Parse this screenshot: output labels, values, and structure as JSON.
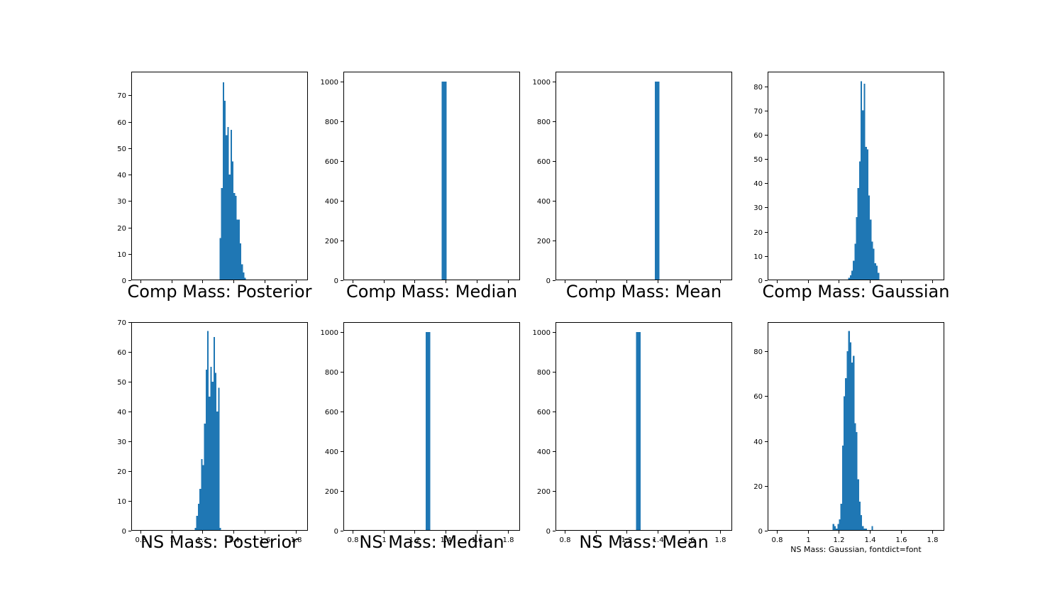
{
  "colors": {
    "bar": "#1f77b4",
    "axis": "#000000",
    "background": "#ffffff"
  },
  "chart_data": [
    {
      "type": "bar",
      "xlabel": "Comp Mass: Posterior",
      "xlim": [
        0.74,
        1.88
      ],
      "ylim": [
        0,
        79
      ],
      "xticks": [
        0.8,
        1.0,
        1.2,
        1.4,
        1.6,
        1.8
      ],
      "xtick_labels_shown": false,
      "yticks": [
        0,
        10,
        20,
        30,
        40,
        50,
        60,
        70
      ],
      "bin_edges": [
        1.31,
        1.32,
        1.33,
        1.34,
        1.35,
        1.36,
        1.37,
        1.38,
        1.39,
        1.4,
        1.41,
        1.42,
        1.43,
        1.44,
        1.45,
        1.46,
        1.47,
        1.48
      ],
      "values": [
        16,
        35,
        75,
        68,
        55,
        58,
        40,
        57,
        45,
        33,
        32,
        23,
        23,
        14,
        6,
        3,
        1
      ]
    },
    {
      "type": "bar",
      "xlabel": "Comp Mass: Median",
      "xlim": [
        0.74,
        1.88
      ],
      "ylim": [
        0,
        1050
      ],
      "xticks": [
        0.8,
        1.0,
        1.2,
        1.4,
        1.6,
        1.8
      ],
      "xtick_labels_shown": false,
      "yticks": [
        0,
        200,
        400,
        600,
        800,
        1000
      ],
      "bin_edges": [
        1.375,
        1.405
      ],
      "values": [
        1000
      ]
    },
    {
      "type": "bar",
      "xlabel": "Comp Mass: Mean",
      "xlim": [
        0.74,
        1.88
      ],
      "ylim": [
        0,
        1050
      ],
      "xticks": [
        0.8,
        1.0,
        1.2,
        1.4,
        1.6,
        1.8
      ],
      "xtick_labels_shown": false,
      "yticks": [
        0,
        200,
        400,
        600,
        800,
        1000
      ],
      "bin_edges": [
        1.38,
        1.41
      ],
      "values": [
        1000
      ]
    },
    {
      "type": "bar",
      "xlabel": "Comp Mass: Gaussian",
      "xlim": [
        0.74,
        1.88
      ],
      "ylim": [
        0,
        86
      ],
      "xticks": [
        0.8,
        1.0,
        1.2,
        1.4,
        1.6,
        1.8
      ],
      "xtick_labels_shown": false,
      "yticks": [
        0,
        10,
        20,
        30,
        40,
        50,
        60,
        70,
        80
      ],
      "bin_edges": [
        1.26,
        1.27,
        1.28,
        1.29,
        1.3,
        1.31,
        1.32,
        1.33,
        1.34,
        1.35,
        1.36,
        1.37,
        1.38,
        1.39,
        1.4,
        1.41,
        1.42,
        1.43,
        1.44,
        1.45,
        1.46
      ],
      "values": [
        1,
        2,
        4,
        8,
        15,
        26,
        38,
        49,
        82,
        70,
        81,
        55,
        54,
        35,
        25,
        16,
        13,
        7,
        6,
        3
      ]
    },
    {
      "type": "bar",
      "xlabel": "NS Mass: Posterior",
      "xlim": [
        0.74,
        1.88
      ],
      "ylim": [
        0,
        70
      ],
      "xticks": [
        0.8,
        1.0,
        1.2,
        1.4,
        1.6,
        1.8
      ],
      "xtick_labels_shown": true,
      "yticks": [
        0,
        10,
        20,
        30,
        40,
        50,
        60,
        70
      ],
      "bin_edges": [
        1.15,
        1.16,
        1.17,
        1.18,
        1.19,
        1.2,
        1.21,
        1.22,
        1.23,
        1.24,
        1.25,
        1.26,
        1.27,
        1.28,
        1.29,
        1.3,
        1.31,
        1.32
      ],
      "values": [
        1,
        5,
        9,
        14,
        24,
        22,
        36,
        54,
        67,
        45,
        55,
        50,
        65,
        53,
        40,
        48,
        1
      ]
    },
    {
      "type": "bar",
      "xlabel": "NS Mass: Median",
      "xlim": [
        0.74,
        1.88
      ],
      "ylim": [
        0,
        1050
      ],
      "xticks": [
        0.8,
        1.0,
        1.2,
        1.4,
        1.6,
        1.8
      ],
      "xtick_labels_shown": true,
      "yticks": [
        0,
        200,
        400,
        600,
        800,
        1000
      ],
      "bin_edges": [
        1.27,
        1.3
      ],
      "values": [
        1000
      ]
    },
    {
      "type": "bar",
      "xlabel": "NS Mass: Mean",
      "xlim": [
        0.74,
        1.88
      ],
      "ylim": [
        0,
        1050
      ],
      "xticks": [
        0.8,
        1.0,
        1.2,
        1.4,
        1.6,
        1.8
      ],
      "xtick_labels_shown": true,
      "yticks": [
        0,
        200,
        400,
        600,
        800,
        1000
      ],
      "bin_edges": [
        1.26,
        1.29
      ],
      "values": [
        1000
      ]
    },
    {
      "type": "bar",
      "xlabel": "NS Mass: Gaussian, fontdict=font",
      "xlim": [
        0.74,
        1.88
      ],
      "ylim": [
        0,
        93
      ],
      "xticks": [
        0.8,
        1.0,
        1.2,
        1.4,
        1.6,
        1.8
      ],
      "xtick_labels_shown": true,
      "yticks": [
        0,
        20,
        40,
        60,
        80
      ],
      "bin_edges": [
        1.16,
        1.17,
        1.18,
        1.19,
        1.2,
        1.21,
        1.22,
        1.23,
        1.24,
        1.25,
        1.26,
        1.27,
        1.28,
        1.29,
        1.3,
        1.31,
        1.32,
        1.33,
        1.34,
        1.35,
        1.36,
        1.37,
        1.38,
        1.41,
        1.42
      ],
      "values": [
        3,
        2,
        1,
        3,
        5,
        12,
        38,
        60,
        68,
        80,
        89,
        84,
        75,
        78,
        48,
        44,
        23,
        13,
        7,
        2,
        1,
        1,
        0,
        2
      ]
    }
  ]
}
